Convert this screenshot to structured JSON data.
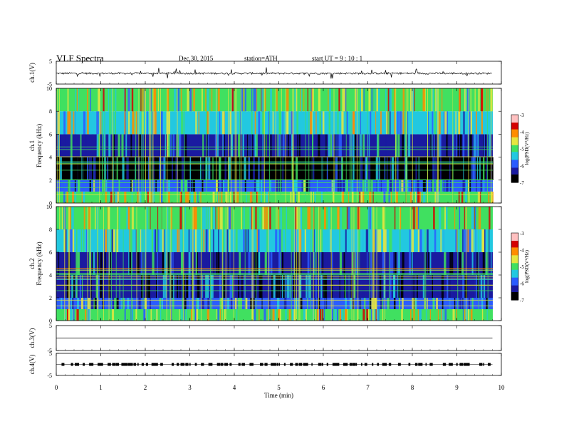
{
  "header": {
    "title": "VLF  Spectra",
    "date": "Dec.30, 2015",
    "station": "station=ATH",
    "start": "start  UT  =    9  : 10 : 1"
  },
  "chart_data": [
    {
      "type": "line",
      "panel": "ch1-waveform",
      "ylabel": "ch.1(V)",
      "yticks": [
        "5",
        "-5"
      ],
      "ylim": [
        -5,
        5
      ],
      "x_minutes": [
        0,
        0.5,
        1,
        1.5,
        2,
        2.5,
        3,
        3.5,
        4,
        4.5,
        5,
        5.5,
        6,
        6.5,
        7,
        7.5,
        8,
        8.5,
        9,
        9.5,
        9.8
      ],
      "values_v": [
        -0.3,
        -0.2,
        -0.4,
        -0.3,
        -0.2,
        -0.4,
        -0.3,
        -0.2,
        -0.3,
        -0.4,
        -0.2,
        -0.3,
        -0.4,
        -0.3,
        -0.2,
        -0.3,
        -0.4,
        -0.3,
        -0.2,
        -0.3,
        -0.4
      ]
    },
    {
      "type": "heatmap",
      "panel": "ch1-spectrogram",
      "ylabel": "ch.1\nFrequency  (kHz)",
      "yticks": [
        "10",
        "8",
        "6",
        "4",
        "2",
        "0"
      ],
      "ylim": [
        0,
        10
      ],
      "colorbar": {
        "label": "log(PSD(V²/Hz)",
        "ticks": [
          "-3",
          "-4",
          "-5",
          "-6",
          "-7"
        ],
        "range": [
          -7,
          -3
        ]
      },
      "x_minutes": [
        0,
        1,
        2,
        3,
        4,
        5,
        6,
        7,
        8,
        9,
        9.8
      ],
      "band_log_psd": [
        {
          "freq_range_khz": [
            0,
            1
          ],
          "level": -5.0
        },
        {
          "freq_range_khz": [
            1,
            2
          ],
          "level": -6.0
        },
        {
          "freq_range_khz": [
            2,
            4
          ],
          "level": -6.6
        },
        {
          "freq_range_khz": [
            4,
            6
          ],
          "level": -6.2
        },
        {
          "freq_range_khz": [
            6,
            8
          ],
          "level": -5.4
        },
        {
          "freq_range_khz": [
            8,
            10
          ],
          "level": -5.2
        }
      ]
    },
    {
      "type": "heatmap",
      "panel": "ch2-spectrogram",
      "ylabel": "ch.2\nFrequency  (kHz)",
      "yticks": [
        "10",
        "8",
        "6",
        "4",
        "2",
        "0"
      ],
      "ylim": [
        0,
        10
      ],
      "colorbar": {
        "label": "log(PSD(V²/Hz)",
        "ticks": [
          "-3",
          "-4",
          "-5",
          "-6",
          "-7"
        ],
        "range": [
          -7,
          -3
        ]
      },
      "x_minutes": [
        0,
        1,
        2,
        3,
        4,
        5,
        6,
        7,
        8,
        9,
        9.8
      ],
      "band_log_psd": [
        {
          "freq_range_khz": [
            0,
            1
          ],
          "level": -5.2
        },
        {
          "freq_range_khz": [
            1,
            2
          ],
          "level": -6.0
        },
        {
          "freq_range_khz": [
            2,
            4
          ],
          "level": -6.5
        },
        {
          "freq_range_khz": [
            4,
            6
          ],
          "level": -6.3
        },
        {
          "freq_range_khz": [
            6,
            8
          ],
          "level": -5.6
        },
        {
          "freq_range_khz": [
            8,
            10
          ],
          "level": -5.1
        }
      ]
    },
    {
      "type": "line",
      "panel": "ch3-waveform",
      "ylabel": "ch.3(V)",
      "yticks": [
        "5",
        "-5"
      ],
      "ylim": [
        -5,
        5
      ],
      "x_minutes": [
        0,
        9.8
      ],
      "values_v": [
        0,
        0
      ]
    },
    {
      "type": "line",
      "panel": "ch4-waveform",
      "ylabel": "ch.4(V)",
      "yticks": [
        "5",
        "-5"
      ],
      "ylim": [
        -5,
        5
      ],
      "x_minutes": [
        0,
        9.8
      ],
      "values_v": [
        0,
        0
      ]
    }
  ],
  "x_axis": {
    "xlabel": "Time  (min)",
    "xticks": [
      "0",
      "1",
      "2",
      "3",
      "4",
      "5",
      "6",
      "7",
      "8",
      "9",
      "10"
    ],
    "xlim": [
      0,
      10
    ]
  },
  "colors": {
    "colormap": [
      "#000000",
      "#1a1aa0",
      "#2a5cff",
      "#22c8e0",
      "#40e060",
      "#e6e640",
      "#ff8c00",
      "#d40000",
      "#ffc0c0"
    ]
  }
}
